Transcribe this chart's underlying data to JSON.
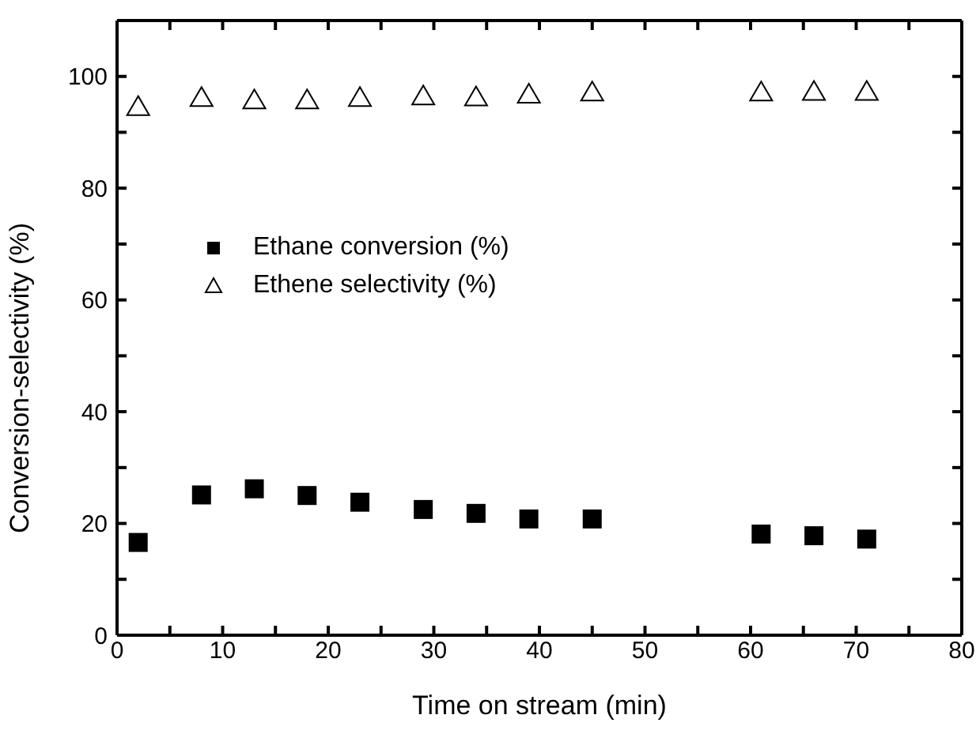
{
  "chart_data": {
    "type": "scatter",
    "xlabel": "Time on stream (min)",
    "ylabel": "Conversion-selectivity (%)",
    "x": [
      2,
      8,
      13,
      18,
      23,
      29,
      34,
      39,
      45,
      61,
      66,
      71
    ],
    "series": [
      {
        "name": "Ethane conversion (%)",
        "color": "#000000",
        "marker": "square",
        "values": [
          16.6,
          25.1,
          26.2,
          25.0,
          23.8,
          22.5,
          21.8,
          20.8,
          20.8,
          18.1,
          17.8,
          17.2
        ]
      },
      {
        "name": "Ethene selectivity (%)",
        "color": "#000000",
        "marker": "triangle",
        "values": [
          94.5,
          96.1,
          95.7,
          95.7,
          96.1,
          96.4,
          96.2,
          96.7,
          97.1,
          97.1,
          97.2,
          97.2
        ]
      }
    ],
    "xlim": [
      0,
      80
    ],
    "xticks": [
      0,
      {
        "value": 5,
        "label": null
      },
      10,
      {
        "value": 15,
        "label": null
      },
      20,
      {
        "value": 25,
        "label": null
      },
      30,
      {
        "value": 35,
        "label": null
      },
      40,
      {
        "value": 45,
        "label": null
      },
      50,
      {
        "value": 55,
        "label": null
      },
      60,
      {
        "value": 65,
        "label": null
      },
      70,
      {
        "value": 75,
        "label": null
      },
      80
    ],
    "ylim": [
      0,
      110
    ],
    "yticks": [
      0,
      {
        "value": 10,
        "label": null
      },
      20,
      {
        "value": 30,
        "label": null
      },
      40,
      {
        "value": 50,
        "label": null
      },
      60,
      {
        "value": 70,
        "label": null
      },
      80,
      {
        "value": 90,
        "label": null
      },
      100
    ],
    "legend": "left"
  }
}
